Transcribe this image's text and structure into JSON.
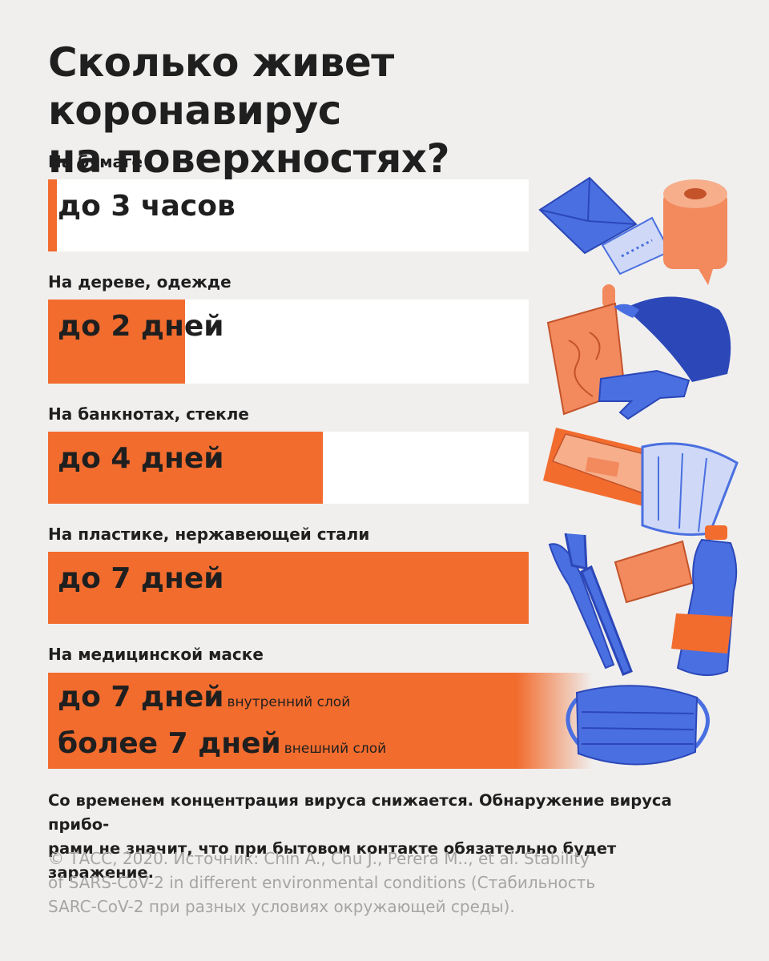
{
  "title": {
    "line1": "Сколько живет коронавирус",
    "line2": "на поверхностях?"
  },
  "chart_data": {
    "type": "bar",
    "orientation": "horizontal",
    "unit": "days",
    "xlim": [
      0,
      7
    ],
    "categories": [
      "На бумаге",
      "На дереве, одежде",
      "На банкнотах, стекле",
      "На пластике, нержавеющей стали",
      "На медицинской маске"
    ],
    "values": [
      0.125,
      2,
      4,
      7,
      7
    ],
    "value_labels": [
      "до 3 часов",
      "до 2 дней",
      "до 4 дней",
      "до 7 дней",
      "до 7 дней"
    ],
    "mask_details": [
      {
        "label": "до 7 дней",
        "sublabel": "внутренний слой"
      },
      {
        "label": "более 7 дней",
        "sublabel": "внешний слой"
      }
    ],
    "bar_color": "#f26c2e",
    "track_color": "#ffffff"
  },
  "note": {
    "line1": "Со временем концентрация вируса снижается. Обнаружение вируса прибо-",
    "line2": "рами не значит, что при бытовом контакте обязательно будет заражение."
  },
  "source": {
    "line1": "© ТАСС, 2020. Источник: Chin A., Chu J., Perera M.., et al. Stability",
    "line2": "of SARS-CoV-2 in different environmental conditions (Стабильность",
    "line3": "SARC-CoV-2 при разных условиях окружающей среды)."
  },
  "colors": {
    "background": "#f0efee",
    "accent_orange": "#f26c2e",
    "accent_blue": "#4a6fe0",
    "text": "#1f1f1f",
    "muted": "#a7a5a3"
  },
  "illustrations": [
    "envelope-icon",
    "receipt-icon",
    "toilet-paper-icon",
    "cutting-board-icon",
    "cap-icon",
    "glove-icon",
    "banknote-icon",
    "glass-cup-icon",
    "fork-icon",
    "knife-icon",
    "card-icon",
    "plastic-bottle-icon",
    "medical-mask-icon"
  ]
}
